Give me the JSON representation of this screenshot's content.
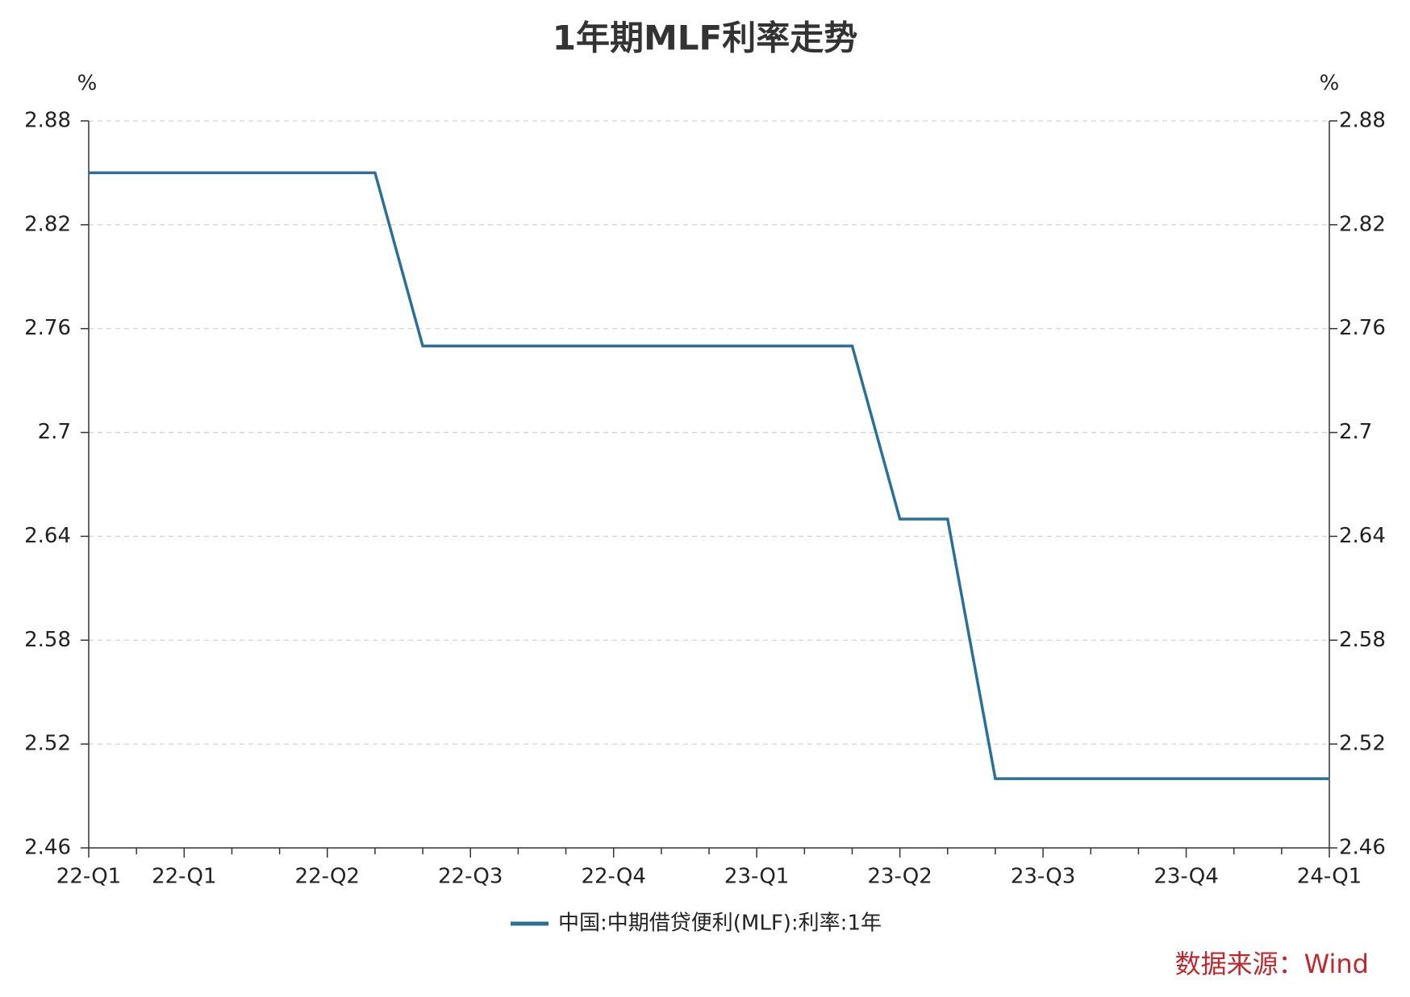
{
  "chart_data": {
    "type": "line",
    "title": "1年期MLF利率走势",
    "y_unit": "%",
    "y2_unit": "%",
    "categories": [
      "22-Q1",
      null,
      "22-Q1",
      null,
      null,
      "22-Q2",
      null,
      null,
      "22-Q3",
      null,
      null,
      "22-Q4",
      null,
      null,
      "23-Q1",
      null,
      null,
      "23-Q2",
      null,
      null,
      "23-Q3",
      null,
      null,
      "23-Q4",
      null,
      null,
      "24-Q1"
    ],
    "series": [
      {
        "name": "中国:中期借贷便利(MLF):利率:1年",
        "color": "#2b7197",
        "values": [
          2.85,
          2.85,
          2.85,
          2.85,
          2.85,
          2.85,
          2.85,
          2.75,
          2.75,
          2.75,
          2.75,
          2.75,
          2.75,
          2.75,
          2.75,
          2.75,
          2.75,
          2.65,
          2.65,
          2.5,
          2.5,
          2.5,
          2.5,
          2.5,
          2.5,
          2.5,
          2.5
        ]
      }
    ],
    "ylim": [
      2.46,
      2.88
    ],
    "yticks": [
      2.46,
      2.52,
      2.58,
      2.64,
      2.7,
      2.76,
      2.82,
      2.88
    ],
    "y2lim": [
      2.46,
      2.88
    ],
    "y2ticks": [
      2.46,
      2.52,
      2.58,
      2.64,
      2.7,
      2.76,
      2.82,
      2.88
    ],
    "grid": true,
    "legend": "bottom",
    "source": "数据来源：Wind",
    "source_color": "#c0282d"
  }
}
